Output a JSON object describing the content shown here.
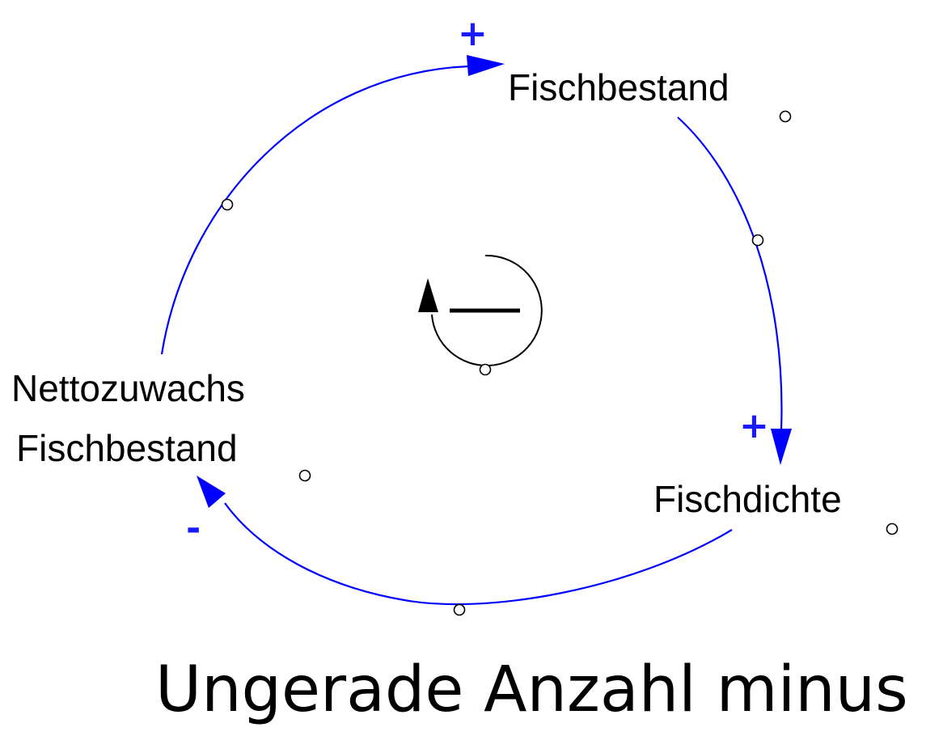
{
  "diagram": {
    "nodes": {
      "fischbestand": "Fischbestand",
      "fischdichte": "Fischdichte",
      "nettozuwachs_line1": "Nettozuwachs",
      "nettozuwachs_line2": "Fischbestand"
    },
    "links": [
      {
        "from": "Fischbestand",
        "to": "Fischdichte",
        "polarity": "+"
      },
      {
        "from": "Fischdichte",
        "to": "Nettozuwachs Fischbestand",
        "polarity": "-"
      },
      {
        "from": "Nettozuwachs Fischbestand",
        "to": "Fischbestand",
        "polarity": "+"
      }
    ],
    "loop_polarity": "—",
    "colors": {
      "link": "#0000ff",
      "polarity_plus": "#1a1aff",
      "polarity_minus": "#1a1aff",
      "loop_marker": "#000000",
      "handle": "#000000"
    }
  },
  "caption": "Ungerade Anzahl minus"
}
